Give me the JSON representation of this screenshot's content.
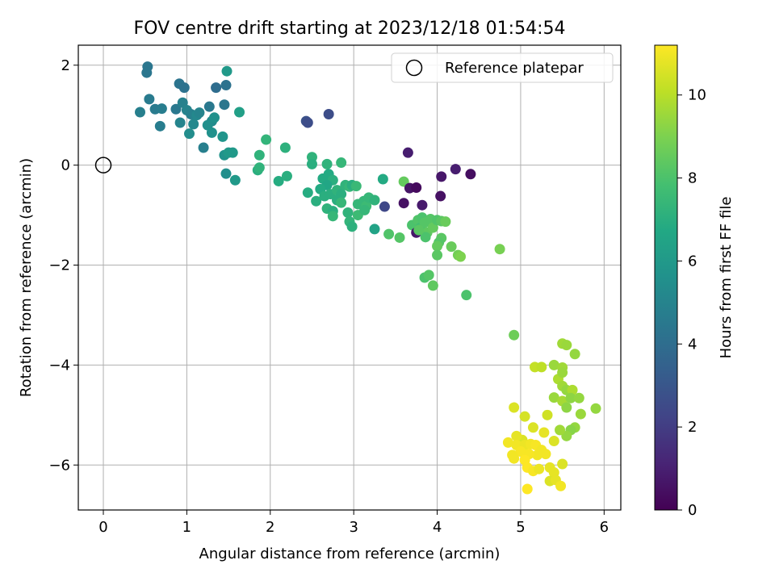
{
  "chart_data": {
    "type": "scatter",
    "title": "FOV centre drift starting at 2023/12/18 01:54:54",
    "xlabel": "Angular distance from reference (arcmin)",
    "ylabel": "Rotation from reference (arcmin)",
    "xlim": [
      -0.3,
      6.2
    ],
    "ylim": [
      -6.9,
      2.4
    ],
    "xticks": [
      0,
      1,
      2,
      3,
      4,
      5,
      6
    ],
    "yticks": [
      2,
      0,
      -2,
      -4,
      -6
    ],
    "grid": true,
    "legend": {
      "position": "top-right",
      "entries": [
        "Reference platepar"
      ]
    },
    "reference_point": {
      "x": 0,
      "y": 0
    },
    "colorbar": {
      "label": "Hours from first FF file",
      "min": 0,
      "max": 11.2,
      "ticks": [
        0,
        2,
        4,
        6,
        8,
        10
      ],
      "colormap": "viridis"
    },
    "points": [
      [
        0.53,
        1.97,
        4.4
      ],
      [
        0.52,
        1.85,
        4.4
      ],
      [
        0.55,
        1.32,
        4.6
      ],
      [
        0.44,
        1.06,
        4.8
      ],
      [
        0.62,
        1.12,
        4.6
      ],
      [
        0.7,
        1.13,
        4.7
      ],
      [
        0.68,
        0.78,
        4.7
      ],
      [
        0.91,
        1.63,
        4.3
      ],
      [
        0.97,
        1.55,
        4.2
      ],
      [
        0.87,
        1.12,
        4.5
      ],
      [
        0.95,
        1.25,
        4.9
      ],
      [
        1.0,
        1.1,
        5.0
      ],
      [
        1.05,
        1.02,
        4.9
      ],
      [
        1.12,
        1.0,
        5.2
      ],
      [
        1.15,
        1.05,
        5.0
      ],
      [
        0.92,
        0.85,
        5.0
      ],
      [
        1.08,
        0.82,
        5.2
      ],
      [
        1.03,
        0.63,
        5.4
      ],
      [
        1.27,
        1.17,
        4.5
      ],
      [
        1.3,
        0.88,
        5.3
      ],
      [
        1.25,
        0.8,
        5.5
      ],
      [
        1.33,
        0.95,
        5.6
      ],
      [
        1.35,
        1.55,
        4.0
      ],
      [
        1.47,
        1.6,
        4.2
      ],
      [
        1.45,
        1.21,
        4.4
      ],
      [
        1.48,
        1.88,
        6.0
      ],
      [
        1.63,
        1.06,
        6.3
      ],
      [
        1.2,
        0.35,
        4.8
      ],
      [
        1.3,
        0.65,
        5.6
      ],
      [
        1.43,
        0.57,
        5.8
      ],
      [
        1.45,
        0.2,
        5.7
      ],
      [
        1.5,
        0.25,
        6.0
      ],
      [
        1.55,
        0.25,
        6.0
      ],
      [
        1.47,
        -0.17,
        5.5
      ],
      [
        1.58,
        -0.3,
        6.0
      ],
      [
        1.95,
        0.51,
        7.3
      ],
      [
        1.87,
        0.2,
        7.2
      ],
      [
        1.85,
        -0.1,
        7.0
      ],
      [
        1.87,
        -0.05,
        7.2
      ],
      [
        2.1,
        -0.32,
        6.9
      ],
      [
        2.2,
        -0.22,
        7.0
      ],
      [
        2.18,
        0.35,
        7.1
      ],
      [
        2.43,
        0.88,
        2.8
      ],
      [
        2.45,
        0.85,
        2.6
      ],
      [
        2.7,
        1.02,
        2.6
      ],
      [
        2.5,
        0.16,
        7.2
      ],
      [
        2.5,
        0.02,
        7.0
      ],
      [
        2.68,
        0.02,
        7.2
      ],
      [
        2.85,
        0.05,
        7.4
      ],
      [
        2.63,
        -0.27,
        6.8
      ],
      [
        2.7,
        -0.18,
        6.8
      ],
      [
        2.75,
        -0.3,
        7.0
      ],
      [
        2.68,
        -0.4,
        6.6
      ],
      [
        2.6,
        -0.48,
        6.8
      ],
      [
        2.65,
        -0.62,
        7.0
      ],
      [
        2.72,
        -0.58,
        7.0
      ],
      [
        2.8,
        -0.5,
        7.2
      ],
      [
        2.85,
        -0.58,
        7.0
      ],
      [
        2.45,
        -0.55,
        6.9
      ],
      [
        2.55,
        -0.72,
        7.0
      ],
      [
        2.68,
        -0.87,
        7.2
      ],
      [
        2.75,
        -0.92,
        7.0
      ],
      [
        2.8,
        -0.7,
        7.0
      ],
      [
        2.75,
        -1.02,
        7.4
      ],
      [
        2.85,
        -0.75,
        7.4
      ],
      [
        2.9,
        -0.4,
        7.2
      ],
      [
        2.95,
        -0.43,
        7.4
      ],
      [
        2.98,
        -0.4,
        7.0
      ],
      [
        3.03,
        -0.42,
        7.5
      ],
      [
        2.93,
        -0.95,
        7.2
      ],
      [
        3.05,
        -0.78,
        7.4
      ],
      [
        2.95,
        -1.13,
        7.3
      ],
      [
        2.98,
        -1.23,
        7.1
      ],
      [
        3.05,
        -1.0,
        7.6
      ],
      [
        3.12,
        -0.72,
        7.4
      ],
      [
        3.15,
        -0.82,
        7.6
      ],
      [
        3.18,
        -0.65,
        7.4
      ],
      [
        3.25,
        -0.7,
        7.2
      ],
      [
        3.13,
        -0.9,
        7.4
      ],
      [
        3.35,
        -0.28,
        6.8
      ],
      [
        3.25,
        -1.28,
        6.5
      ],
      [
        3.37,
        -0.83,
        2.4
      ],
      [
        3.42,
        -1.38,
        8.1
      ],
      [
        3.55,
        -1.45,
        8.2
      ],
      [
        3.6,
        -0.33,
        8.5
      ],
      [
        3.65,
        0.25,
        0.9
      ],
      [
        3.67,
        -0.46,
        0.6
      ],
      [
        3.75,
        -0.45,
        0.3
      ],
      [
        3.6,
        -0.76,
        0.5
      ],
      [
        3.82,
        -0.8,
        0.8
      ],
      [
        3.7,
        -1.2,
        8.0
      ],
      [
        3.75,
        -1.35,
        0.7
      ],
      [
        3.77,
        -1.1,
        8.1
      ],
      [
        3.8,
        -1.25,
        7.8
      ],
      [
        3.82,
        -1.05,
        8.0
      ],
      [
        3.85,
        -1.15,
        8.2
      ],
      [
        3.88,
        -1.35,
        8.4
      ],
      [
        3.92,
        -1.08,
        8.2
      ],
      [
        3.95,
        -1.25,
        8.5
      ],
      [
        4.0,
        -1.1,
        8.1
      ],
      [
        4.05,
        -1.12,
        8.3
      ],
      [
        4.1,
        -1.13,
        8.6
      ],
      [
        3.86,
        -1.44,
        8.0
      ],
      [
        3.78,
        -1.3,
        8.3
      ],
      [
        4.04,
        -0.62,
        0.5
      ],
      [
        4.05,
        -0.23,
        0.7
      ],
      [
        4.22,
        -0.08,
        0.9
      ],
      [
        4.4,
        -0.18,
        0.4
      ],
      [
        4.05,
        -1.46,
        8.3
      ],
      [
        4.02,
        -1.55,
        8.2
      ],
      [
        4.0,
        -1.62,
        8.5
      ],
      [
        4.0,
        -1.8,
        8.3
      ],
      [
        4.17,
        -1.63,
        8.6
      ],
      [
        4.25,
        -1.8,
        8.8
      ],
      [
        4.28,
        -1.83,
        9.0
      ],
      [
        4.35,
        -2.6,
        8.0
      ],
      [
        3.85,
        -2.25,
        8.0
      ],
      [
        3.9,
        -2.2,
        8.2
      ],
      [
        3.95,
        -2.41,
        8.4
      ],
      [
        4.75,
        -1.68,
        8.9
      ],
      [
        4.92,
        -3.4,
        8.7
      ],
      [
        5.5,
        -3.57,
        9.6
      ],
      [
        5.55,
        -3.6,
        9.5
      ],
      [
        5.65,
        -3.78,
        9.4
      ],
      [
        5.4,
        -4.0,
        9.5
      ],
      [
        5.5,
        -4.05,
        9.6
      ],
      [
        5.17,
        -4.04,
        10.2
      ],
      [
        5.25,
        -4.04,
        10.1
      ],
      [
        5.45,
        -4.28,
        9.8
      ],
      [
        5.5,
        -4.15,
        9.5
      ],
      [
        5.5,
        -4.42,
        9.6
      ],
      [
        5.55,
        -4.5,
        9.4
      ],
      [
        5.62,
        -4.5,
        9.8
      ],
      [
        5.4,
        -4.65,
        9.5
      ],
      [
        5.5,
        -4.72,
        9.7
      ],
      [
        5.6,
        -4.66,
        9.3
      ],
      [
        5.7,
        -4.66,
        9.4
      ],
      [
        5.55,
        -4.85,
        9.3
      ],
      [
        5.9,
        -4.87,
        9.4
      ],
      [
        5.72,
        -4.98,
        9.5
      ],
      [
        5.65,
        -5.25,
        9.4
      ],
      [
        5.6,
        -5.3,
        9.2
      ],
      [
        5.55,
        -5.42,
        9.4
      ],
      [
        5.47,
        -5.3,
        9.6
      ],
      [
        5.32,
        -5.0,
        10.4
      ],
      [
        5.05,
        -5.03,
        10.5
      ],
      [
        4.92,
        -4.85,
        10.6
      ],
      [
        5.15,
        -5.25,
        10.6
      ],
      [
        5.28,
        -5.35,
        10.8
      ],
      [
        5.4,
        -5.52,
        10.6
      ],
      [
        5.02,
        -5.5,
        10.6
      ],
      [
        4.95,
        -5.42,
        10.8
      ],
      [
        4.85,
        -5.55,
        11.0
      ],
      [
        4.95,
        -5.6,
        11.0
      ],
      [
        5.05,
        -5.6,
        10.9
      ],
      [
        5.12,
        -5.58,
        11.0
      ],
      [
        5.18,
        -5.6,
        11.1
      ],
      [
        5.25,
        -5.7,
        11.0
      ],
      [
        5.3,
        -5.78,
        11.0
      ],
      [
        5.2,
        -5.8,
        11.0
      ],
      [
        5.1,
        -5.78,
        11.1
      ],
      [
        5.0,
        -5.73,
        11.1
      ],
      [
        4.9,
        -5.8,
        11.0
      ],
      [
        4.92,
        -5.87,
        11.0
      ],
      [
        5.05,
        -5.9,
        11.2
      ],
      [
        5.08,
        -6.05,
        11.2
      ],
      [
        5.15,
        -6.12,
        11.1
      ],
      [
        5.22,
        -6.08,
        10.9
      ],
      [
        5.35,
        -6.05,
        10.8
      ],
      [
        5.4,
        -6.15,
        10.8
      ],
      [
        5.5,
        -5.98,
        10.6
      ],
      [
        5.35,
        -6.32,
        10.6
      ],
      [
        5.42,
        -6.3,
        10.8
      ],
      [
        5.48,
        -6.42,
        11.0
      ],
      [
        5.08,
        -6.48,
        11.2
      ]
    ]
  }
}
